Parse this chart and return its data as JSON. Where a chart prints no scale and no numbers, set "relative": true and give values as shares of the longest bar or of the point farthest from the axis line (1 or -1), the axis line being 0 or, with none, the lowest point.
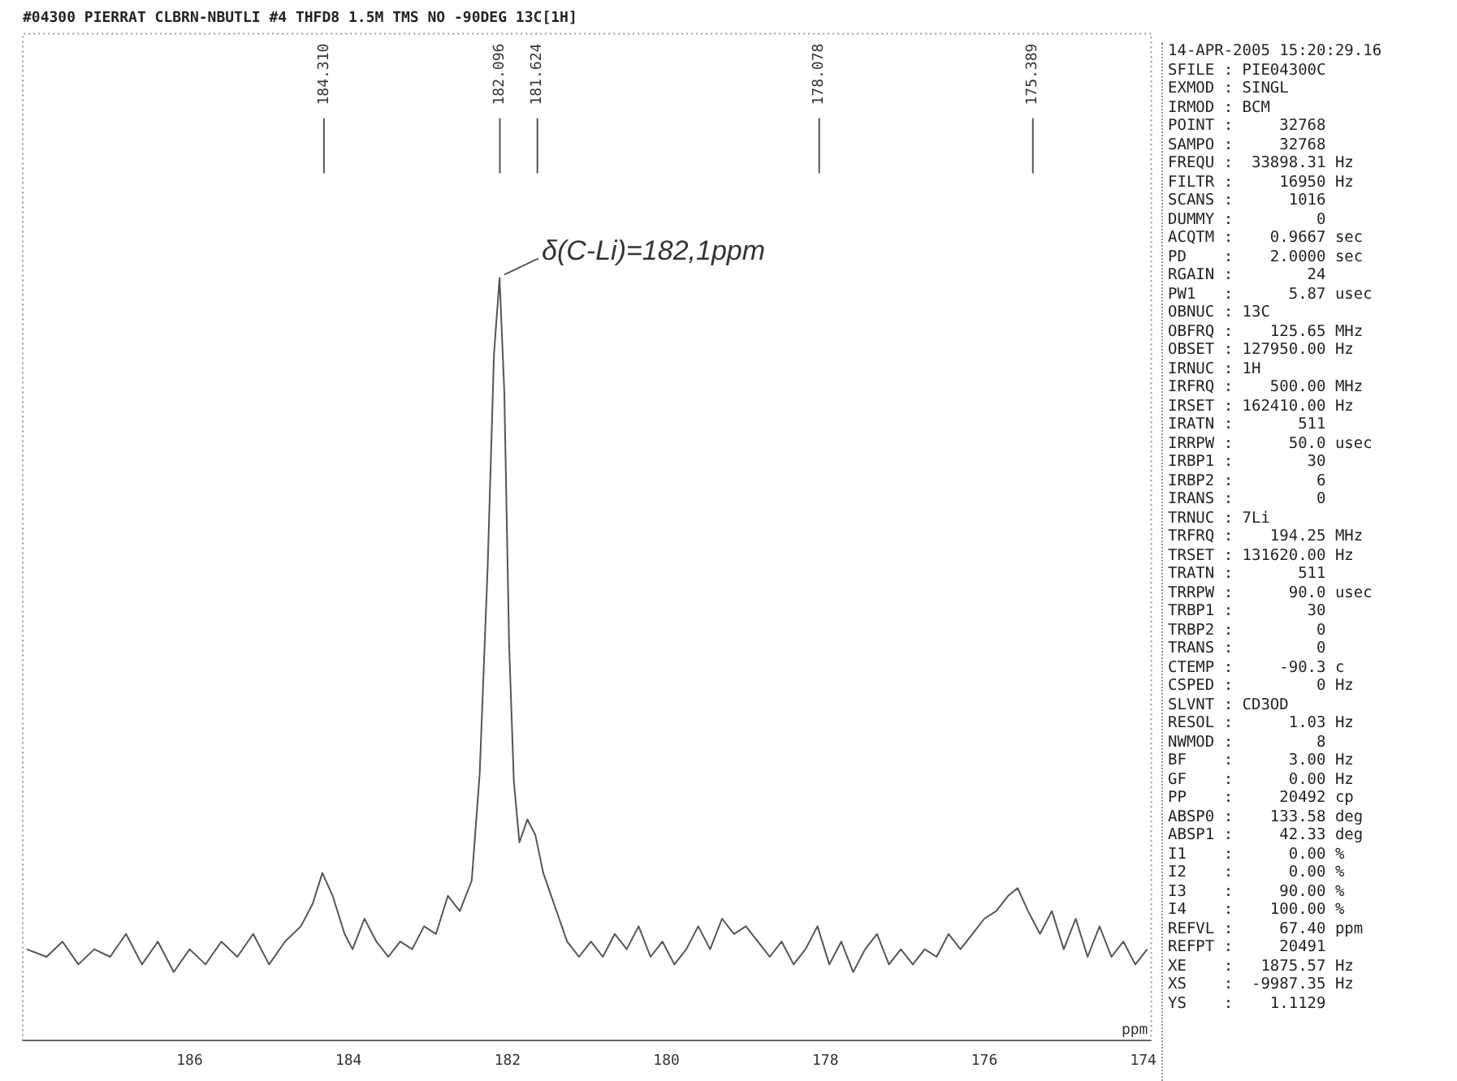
{
  "chart_data": {
    "type": "line",
    "title": "#04300 PIERRAT CLBRN-NBUTLI #4 THFD8 1.5M TMS NO -90DEG 13C[1H]",
    "xlabel": "ppm",
    "relative": true,
    "color": "#555555",
    "xlim": [
      188.1,
      173.9
    ],
    "xticks": [
      186,
      184,
      182,
      180,
      178,
      176,
      174
    ],
    "x": [
      188.05,
      187.8,
      187.6,
      187.4,
      187.2,
      187.0,
      186.8,
      186.6,
      186.4,
      186.2,
      186.0,
      185.8,
      185.6,
      185.4,
      185.2,
      185.0,
      184.8,
      184.6,
      184.45,
      184.33,
      184.2,
      184.05,
      183.95,
      183.8,
      183.65,
      183.5,
      183.35,
      183.2,
      183.05,
      182.9,
      182.75,
      182.6,
      182.45,
      182.35,
      182.25,
      182.17,
      182.1,
      182.04,
      181.98,
      181.92,
      181.85,
      181.75,
      181.65,
      181.55,
      181.45,
      181.35,
      181.25,
      181.1,
      180.95,
      180.8,
      180.65,
      180.5,
      180.35,
      180.2,
      180.05,
      179.9,
      179.75,
      179.6,
      179.45,
      179.3,
      179.15,
      179.0,
      178.85,
      178.7,
      178.55,
      178.4,
      178.25,
      178.1,
      177.95,
      177.8,
      177.65,
      177.5,
      177.35,
      177.2,
      177.05,
      176.9,
      176.75,
      176.6,
      176.45,
      176.3,
      176.15,
      176.0,
      175.85,
      175.7,
      175.58,
      175.45,
      175.3,
      175.15,
      175.0,
      174.85,
      174.7,
      174.55,
      174.4,
      174.25,
      174.1,
      173.95
    ],
    "values": [
      0.12,
      0.11,
      0.13,
      0.1,
      0.12,
      0.11,
      0.14,
      0.1,
      0.13,
      0.09,
      0.12,
      0.1,
      0.13,
      0.11,
      0.14,
      0.1,
      0.13,
      0.15,
      0.18,
      0.22,
      0.19,
      0.14,
      0.12,
      0.16,
      0.13,
      0.11,
      0.13,
      0.12,
      0.15,
      0.14,
      0.19,
      0.17,
      0.21,
      0.35,
      0.62,
      0.9,
      1.0,
      0.85,
      0.52,
      0.34,
      0.26,
      0.29,
      0.27,
      0.22,
      0.19,
      0.16,
      0.13,
      0.11,
      0.13,
      0.11,
      0.14,
      0.12,
      0.15,
      0.11,
      0.13,
      0.1,
      0.12,
      0.15,
      0.12,
      0.16,
      0.14,
      0.15,
      0.13,
      0.11,
      0.13,
      0.1,
      0.12,
      0.15,
      0.1,
      0.13,
      0.09,
      0.12,
      0.14,
      0.1,
      0.12,
      0.1,
      0.12,
      0.11,
      0.14,
      0.12,
      0.14,
      0.16,
      0.17,
      0.19,
      0.2,
      0.17,
      0.14,
      0.17,
      0.12,
      0.16,
      0.11,
      0.15,
      0.11,
      0.13,
      0.1,
      0.12
    ],
    "annotations": [
      {
        "text": "δ(C-Li)=182,1ppm",
        "x": 182.1,
        "y": 1
      },
      {
        "text": "184.310",
        "x": 184.31
      },
      {
        "text": "182.096",
        "x": 182.096
      },
      {
        "text": "181.624",
        "x": 181.624
      },
      {
        "text": "178.078",
        "x": 178.078
      },
      {
        "text": "175.389",
        "x": 175.389
      },
      "14-APR-2005 15:20:29.16",
      "SFILE : PIE04300C",
      "EXMOD : SINGL",
      "IRMOD : BCM",
      "POINT :     32768",
      "SAMPO :     32768",
      "FREQU :  33898.31 Hz",
      "FILTR :     16950 Hz",
      "SCANS :      1016",
      "DUMMY :         0",
      "ACQTM :    0.9667 sec",
      "PD    :    2.0000 sec",
      "RGAIN :        24",
      "PW1   :      5.87 usec",
      "OBNUC : 13C",
      "OBFRQ :    125.65 MHz",
      "OBSET : 127950.00 Hz",
      "IRNUC : 1H",
      "IRFRQ :    500.00 MHz",
      "IRSET : 162410.00 Hz",
      "IRATN :       511",
      "IRRPW :      50.0 usec",
      "IRBP1 :        30",
      "IRBP2 :         6",
      "IRANS :         0",
      "TRNUC : 7Li",
      "TRFRQ :    194.25 MHz",
      "TRSET : 131620.00 Hz",
      "TRATN :       511",
      "TRRPW :      90.0 usec",
      "TRBP1 :        30",
      "TRBP2 :         0",
      "TRANS :         0",
      "CTEMP :     -90.3 c",
      "CSPED :         0 Hz",
      "SLVNT : CD3OD",
      "RESOL :      1.03 Hz",
      "NWMOD :         8",
      "BF    :      3.00 Hz",
      "GF    :      0.00 Hz",
      "PP    :     20492 cp",
      "ABSP0 :    133.58 deg",
      "ABSP1 :     42.33 deg",
      "I1    :      0.00 %",
      "I2    :      0.00 %",
      "I3    :     90.00 %",
      "I4    :    100.00 %",
      "REFVL :     67.40 ppm",
      "REFPT :     20491",
      "XE    :   1875.57 Hz",
      "XS    :  -9987.35 Hz",
      "YS    :    1.1129"
    ]
  }
}
